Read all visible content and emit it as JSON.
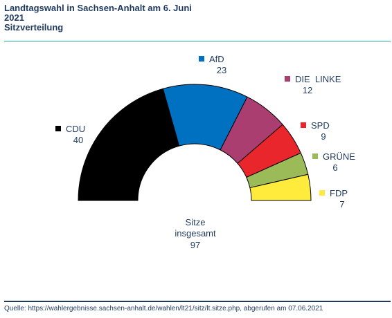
{
  "header": {
    "title_line1": "Landtagswahl in Sachsen-Anhalt am 6. Juni",
    "title_line2": "2021",
    "subtitle": "Sitzverteilung"
  },
  "chart_data": {
    "type": "pie",
    "subtype": "parliament-half-donut",
    "title": "Landtagswahl in Sachsen-Anhalt am 6. Juni 2021",
    "subtitle": "Sitzverteilung",
    "series": [
      {
        "name": "CDU",
        "value": 40,
        "color": "#000000"
      },
      {
        "name": "AfD",
        "value": 23,
        "color": "#0070c0"
      },
      {
        "name": "DIE  LINKE",
        "value": 12,
        "color": "#ab3e71"
      },
      {
        "name": "SPD",
        "value": 9,
        "color": "#e8262b"
      },
      {
        "name": "GRÜNE",
        "value": 6,
        "color": "#9bbb59"
      },
      {
        "name": "FDP",
        "value": 7,
        "color": "#ffeb3b"
      }
    ],
    "total_label": [
      "Sitze",
      "insgesamt"
    ],
    "total": 97
  },
  "footer": {
    "source": "Quelle:  https://wahlergebnisse.sachsen-anhalt.de/wahlen/lt21/sitz/lt.sitze.php, abgerufen am 07.06.2021"
  }
}
